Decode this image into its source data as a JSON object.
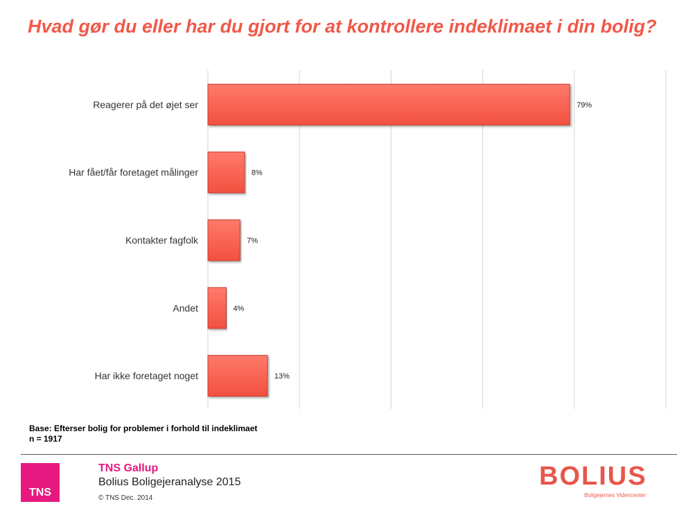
{
  "header": {
    "title": "Hvad gør du eller har du gjort for at kontrollere indeklimaet i din bolig?"
  },
  "chart_data": {
    "type": "bar",
    "orientation": "horizontal",
    "categories": [
      "Reagerer på det øjet ser",
      "Har fået/får foretaget målinger",
      "Kontakter fagfolk",
      "Andet",
      "Har ikke foretaget noget"
    ],
    "values": [
      79,
      8,
      7,
      4,
      13
    ],
    "value_labels": [
      "79%",
      "8%",
      "7%",
      "4%",
      "13%"
    ],
    "xlim": [
      0,
      100
    ],
    "grid": true,
    "bar_color": "#ff6655"
  },
  "base": {
    "line1": "Base: Efterser bolig for problemer i forhold til indeklimaet",
    "line2": "n = 1917"
  },
  "footer": {
    "tns_logo": "TNS",
    "company": "TNS Gallup",
    "study": "Bolius Boligejeranalyse 2015",
    "copyright": "© TNS Dec. 2014",
    "bolius_logo": "BOLIUS",
    "bolius_tagline": "Boligejernes Videncenter"
  }
}
